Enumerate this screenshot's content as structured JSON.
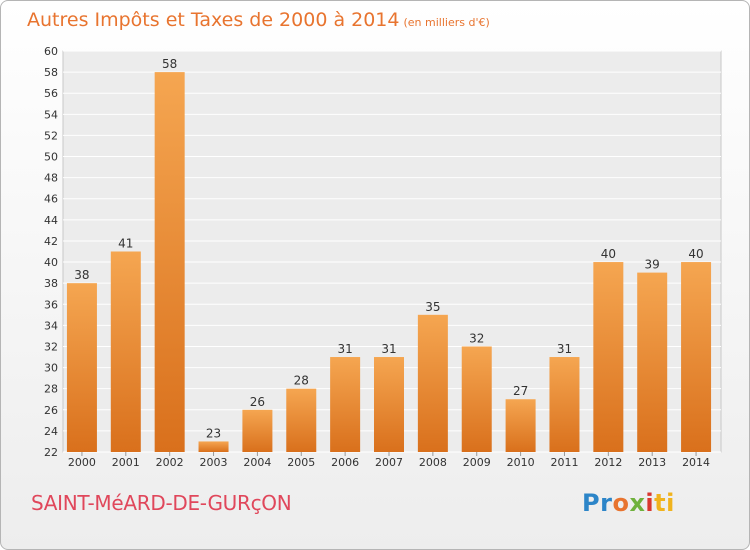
{
  "header": {
    "title": "Autres Impôts et Taxes de 2000 à 2014",
    "subtitle": "(en milliers d'€)"
  },
  "footer": {
    "commune": "SAINT-MéARD-DE-GURçON",
    "logo_text": "Proxiti"
  },
  "colors": {
    "bar_top": "#f5a651",
    "bar_bottom": "#d9701c",
    "title": "#e8742f",
    "commune": "#e0475b"
  },
  "chart_data": {
    "type": "bar",
    "categories": [
      "2000",
      "2001",
      "2002",
      "2003",
      "2004",
      "2005",
      "2006",
      "2007",
      "2008",
      "2009",
      "2010",
      "2011",
      "2012",
      "2013",
      "2014"
    ],
    "values": [
      38,
      41,
      58,
      23,
      26,
      28,
      31,
      31,
      35,
      32,
      27,
      31,
      40,
      39,
      40
    ],
    "title": "Autres Impôts et Taxes de 2000 à 2014",
    "xlabel": "",
    "ylabel": "",
    "ylim": [
      22,
      60
    ],
    "ytick_step": 2,
    "grid": true,
    "data_labels": true
  }
}
